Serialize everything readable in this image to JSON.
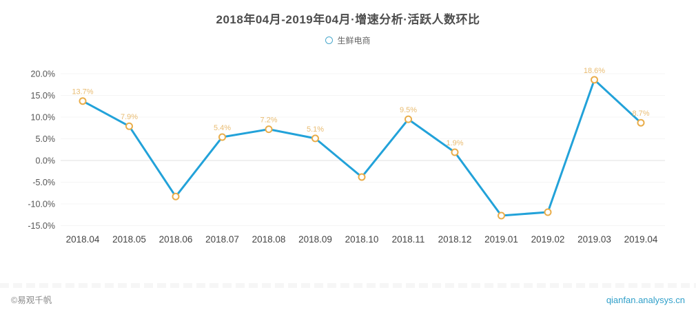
{
  "title": "2018年04月-2019年04月·增速分析·活跃人数环比",
  "legend": {
    "label": "生鲜电商"
  },
  "footer": {
    "copyright": "©易观千帆",
    "site": "qianfan.analysys.cn"
  },
  "colors": {
    "line": "#22a2d9",
    "marker_ring": "#e9ad4a",
    "marker_fill": "#ffffff",
    "point_label": "#e9bc72",
    "axis_text": "#555555",
    "x_axis_text": "#444444",
    "zero_line": "#e0e0e0",
    "grid_line": "#f5f5f5",
    "legend_marker": "#49a8cc",
    "link": "#2f9fc9"
  },
  "chart_data": {
    "type": "line",
    "title": "2018年04月-2019年04月·增速分析·活跃人数环比",
    "legend_position": "top",
    "grid": true,
    "ylabel": "",
    "xlabel": "",
    "ylim": [
      -15,
      20
    ],
    "y_tick_values": [
      20,
      15,
      10,
      5,
      0,
      -5,
      -10,
      -15
    ],
    "y_tick_labels": [
      "20.0%",
      "15.0%",
      "10.0%",
      "5.0%",
      "0.0%",
      "-5.0%",
      "-10.0%",
      "-15.0%"
    ],
    "categories": [
      "2018.04",
      "2018.05",
      "2018.06",
      "2018.07",
      "2018.08",
      "2018.09",
      "2018.10",
      "2018.11",
      "2018.12",
      "2019.01",
      "2019.02",
      "2019.03",
      "2019.04"
    ],
    "series": [
      {
        "name": "生鲜电商",
        "values": [
          13.7,
          7.9,
          -8.3,
          5.4,
          7.2,
          5.1,
          -3.8,
          9.5,
          1.9,
          -12.7,
          -11.9,
          18.6,
          8.7
        ],
        "point_labels": [
          "13.7%",
          "7.9%",
          "",
          "5.4%",
          "7.2%",
          "5.1%",
          "",
          "9.5%",
          "1.9%",
          "",
          "",
          "18.6%",
          "8.7%"
        ]
      }
    ]
  }
}
